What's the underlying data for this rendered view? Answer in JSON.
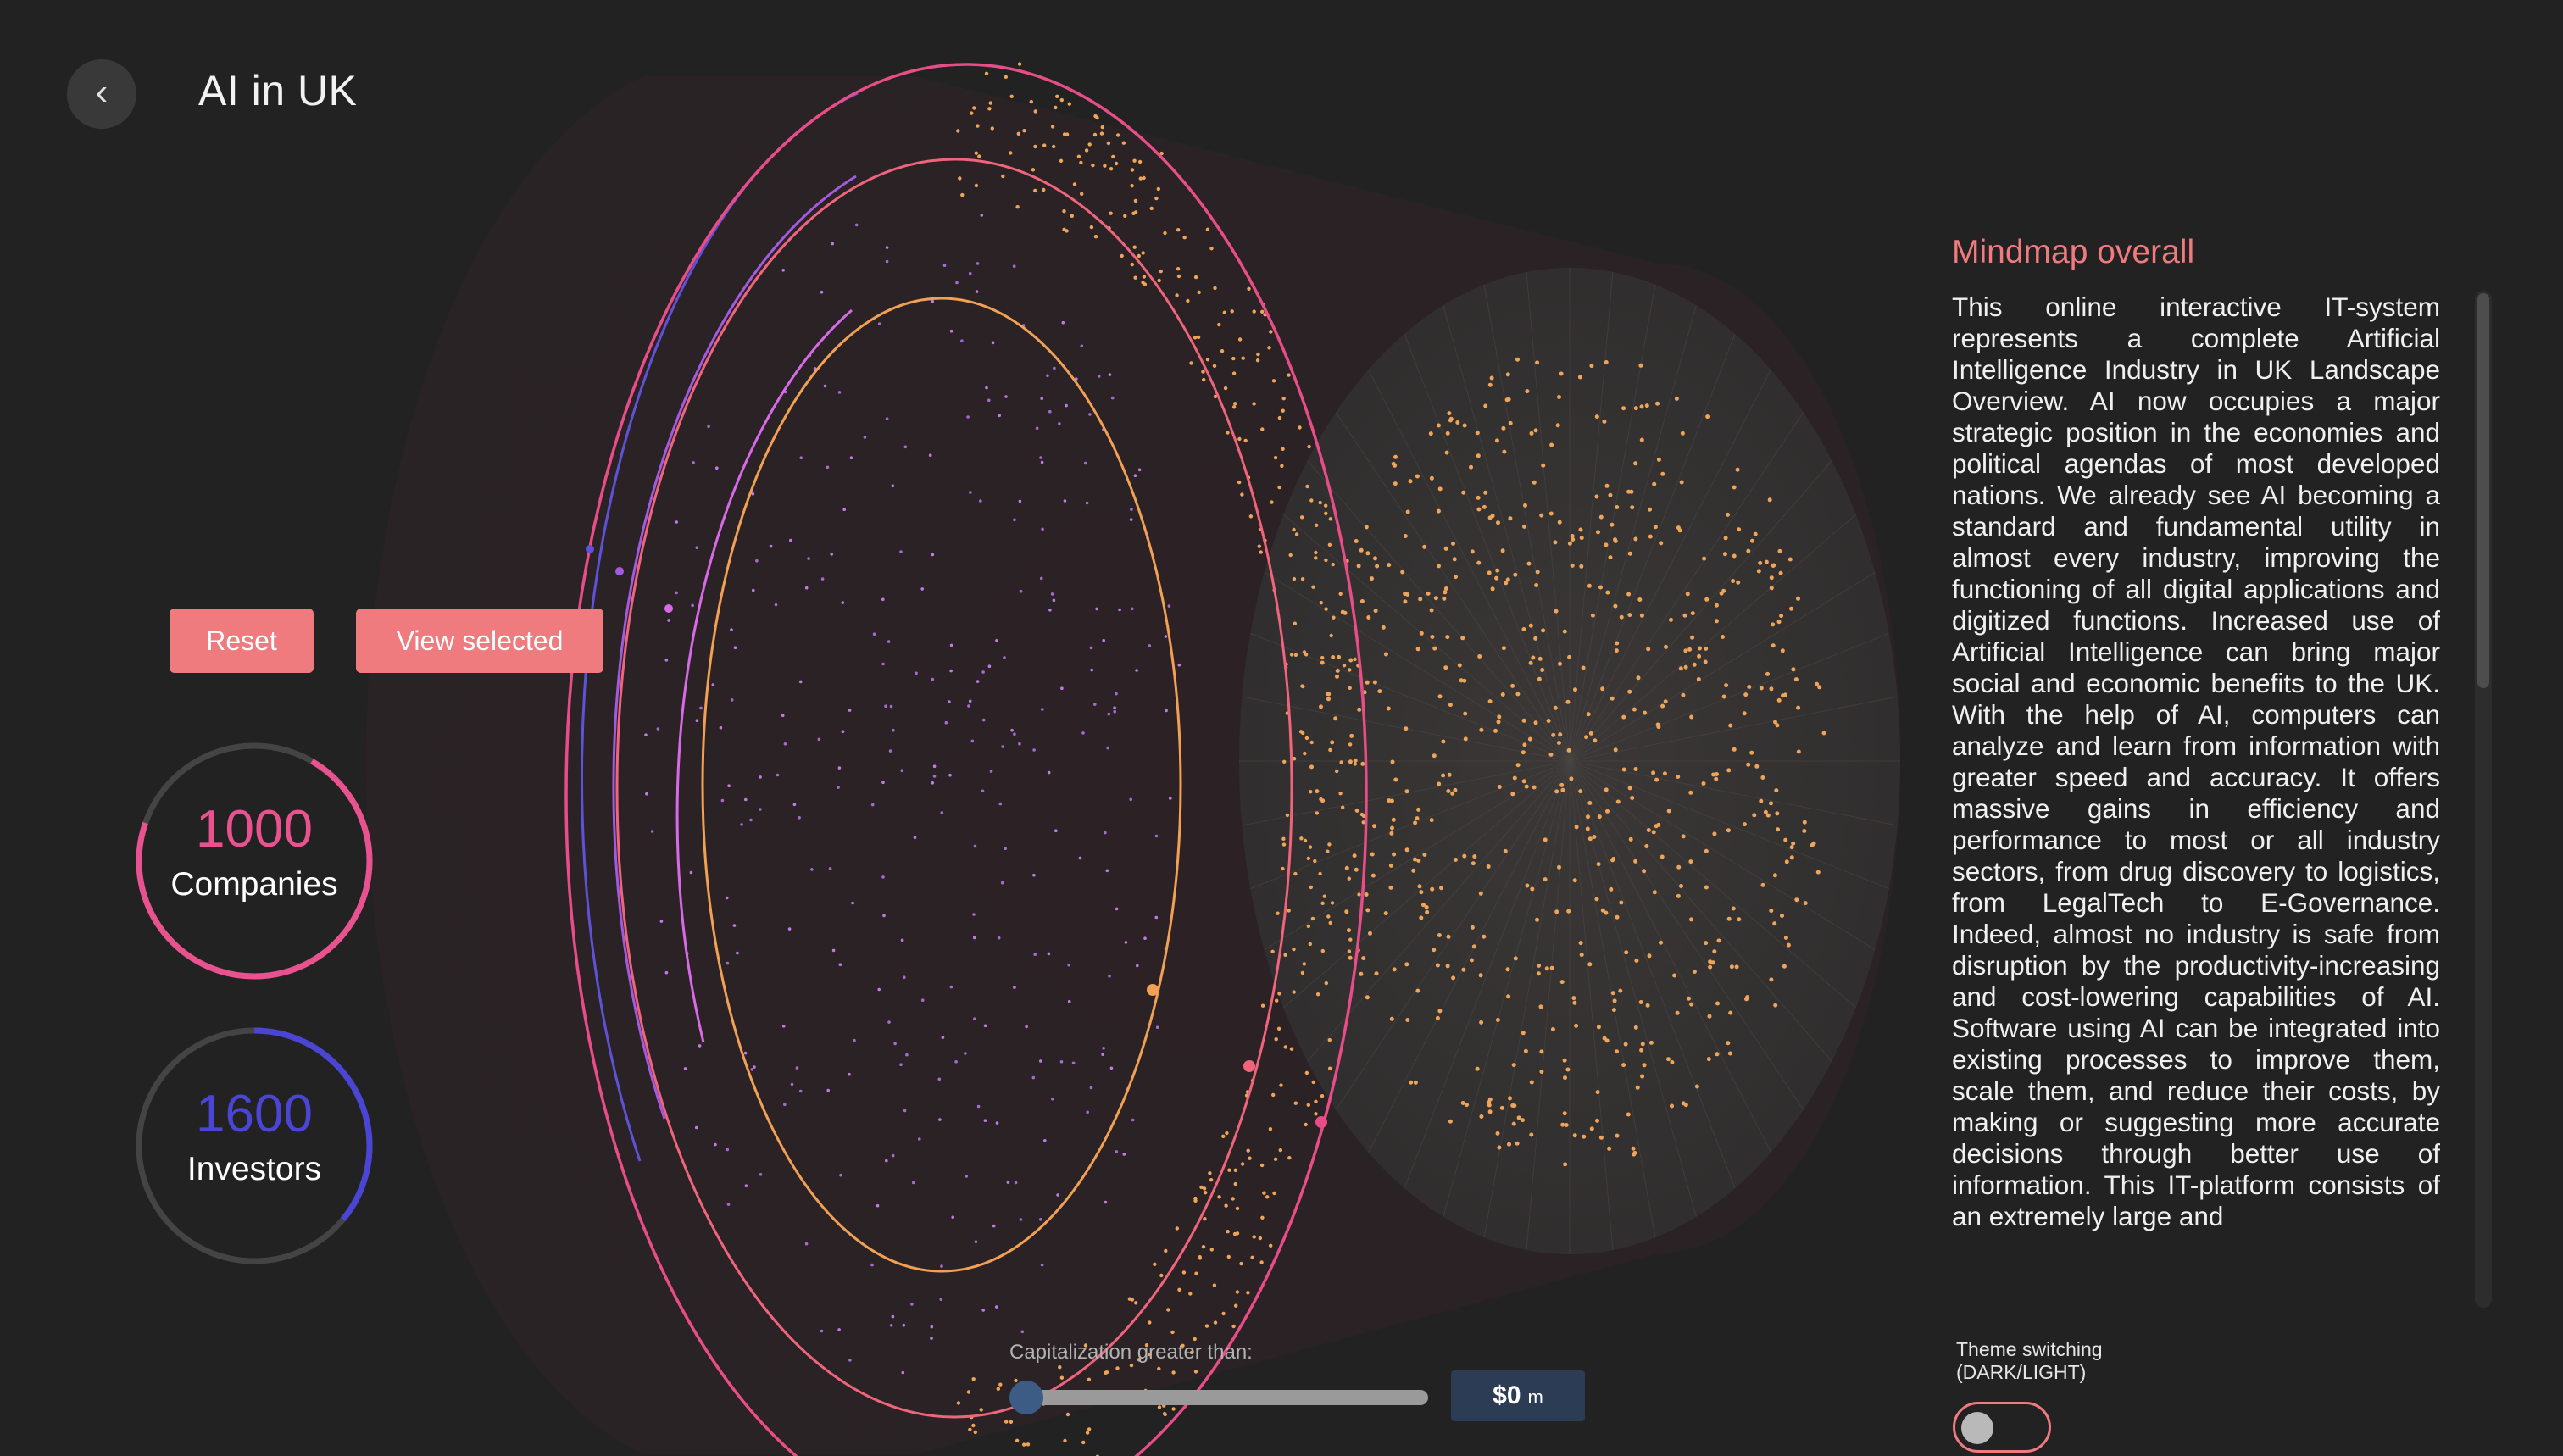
{
  "header": {
    "back_icon": "chevron-left-icon",
    "title": "AI in UK"
  },
  "actions": {
    "reset_label": "Reset",
    "view_selected_label": "View selected"
  },
  "stats": {
    "companies": {
      "value": "1000",
      "label": "Companies",
      "color": "#e8528e",
      "progress": 0.72
    },
    "investors": {
      "value": "1600",
      "label": "Investors",
      "color": "#4b45d6",
      "progress": 0.36
    }
  },
  "panel": {
    "title": "Mindmap overall",
    "text": "This online interactive IT-system represents a complete Artificial Intelligence Industry in UK Landscape Overview. AI now occupies a major strategic position in the economies and political agendas of most developed nations. We already see AI becoming a standard and fundamental utility in almost every industry, improving the functioning of all digital applications and digitized functions. Increased use of Artificial Intelligence can bring major social and economic benefits to the UK. With the help of AI, computers can analyze and learn from information with greater speed and accuracy. It offers massive gains in efficiency and performance to most or all industry sectors, from drug discovery to logistics, from LegalTech to E-Governance. Indeed, almost no industry is safe from disruption by the productivity-increasing and cost-lowering capabilities of AI. Software using AI can be integrated into existing processes to improve them, scale them, and reduce their costs, by making or suggesting more accurate decisions through better use of information. This IT-platform consists of an extremely large and"
  },
  "filter": {
    "caption": "Capitalization greater than:",
    "value": "$0",
    "unit": "m"
  },
  "theme": {
    "label": "Theme switching (DARK/LIGHT)"
  },
  "colors": {
    "accent": "#ef7b7f",
    "background": "#232223",
    "dots": "#f0a45a",
    "ring_inner": "#f2a054"
  }
}
